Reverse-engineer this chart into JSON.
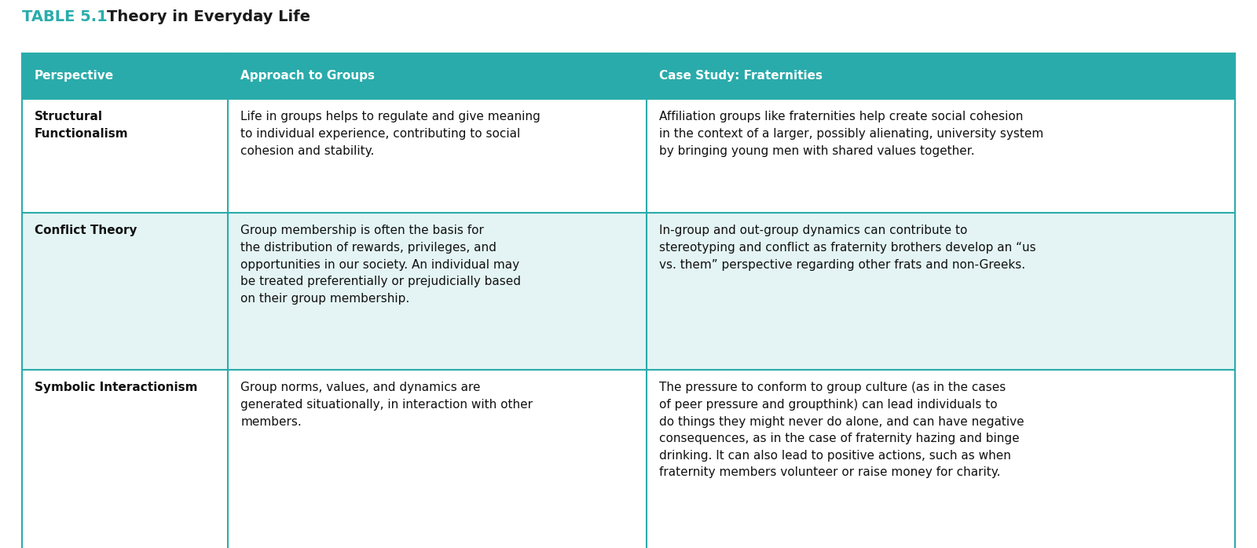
{
  "title_prefix": "TABLE 5.1",
  "title_text": "Theory in Everyday Life",
  "title_prefix_color": "#2aacac",
  "title_text_color": "#1a1a1a",
  "header_bg": "#2aabab",
  "header_text_color": "#ffffff",
  "border_color": "#2aabab",
  "col_headers": [
    "Perspective",
    "Approach to Groups",
    "Case Study: Fraternities"
  ],
  "col_props": [
    0.17,
    0.345,
    0.485
  ],
  "rows": [
    {
      "perspective": "Structural\nFunctionalism",
      "approach": "Life in groups helps to regulate and give meaning\nto individual experience, contributing to social\ncohesion and stability.",
      "case_study": "Affiliation groups like fraternities help create social cohesion\nin the context of a larger, possibly alienating, university system\nby bringing young men with shared values together.",
      "bg": "#ffffff"
    },
    {
      "perspective": "Conflict Theory",
      "approach": "Group membership is often the basis for\nthe distribution of rewards, privileges, and\nopportunities in our society. An individual may\nbe treated preferentially or prejudicially based\non their group membership.",
      "case_study": "In-group and out-group dynamics can contribute to\nstereotyping and conflict as fraternity brothers develop an “us\nvs. them” perspective regarding other frats and non-Greeks.",
      "bg": "#e4f4f4"
    },
    {
      "perspective": "Symbolic Interactionism",
      "approach": "Group norms, values, and dynamics are\ngenerated situationally, in interaction with other\nmembers.",
      "case_study": "The pressure to conform to group culture (as in the cases\nof peer pressure and groupthink) can lead individuals to\ndo things they might never do alone, and can have negative\nconsequences, as in the case of fraternity hazing and binge\ndrinking. It can also lead to positive actions, such as when\nfraternity members volunteer or raise money for charity.",
      "bg": "#ffffff"
    }
  ]
}
